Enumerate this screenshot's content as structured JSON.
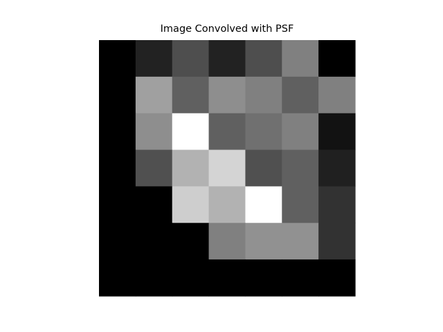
{
  "chart_data": {
    "type": "heatmap",
    "title": "Image Convolved with PSF",
    "colormap": "gray",
    "value_range": [
      0,
      255
    ],
    "axes_visible": false,
    "rows": 7,
    "cols": 7,
    "values": [
      [
        0,
        34,
        78,
        34,
        78,
        128,
        0
      ],
      [
        0,
        160,
        96,
        142,
        128,
        96,
        128
      ],
      [
        0,
        142,
        255,
        96,
        112,
        128,
        18
      ],
      [
        0,
        80,
        178,
        212,
        80,
        96,
        32
      ],
      [
        0,
        0,
        206,
        178,
        255,
        96,
        50
      ],
      [
        0,
        0,
        0,
        128,
        145,
        145,
        50
      ],
      [
        0,
        0,
        0,
        0,
        0,
        0,
        0
      ]
    ]
  }
}
